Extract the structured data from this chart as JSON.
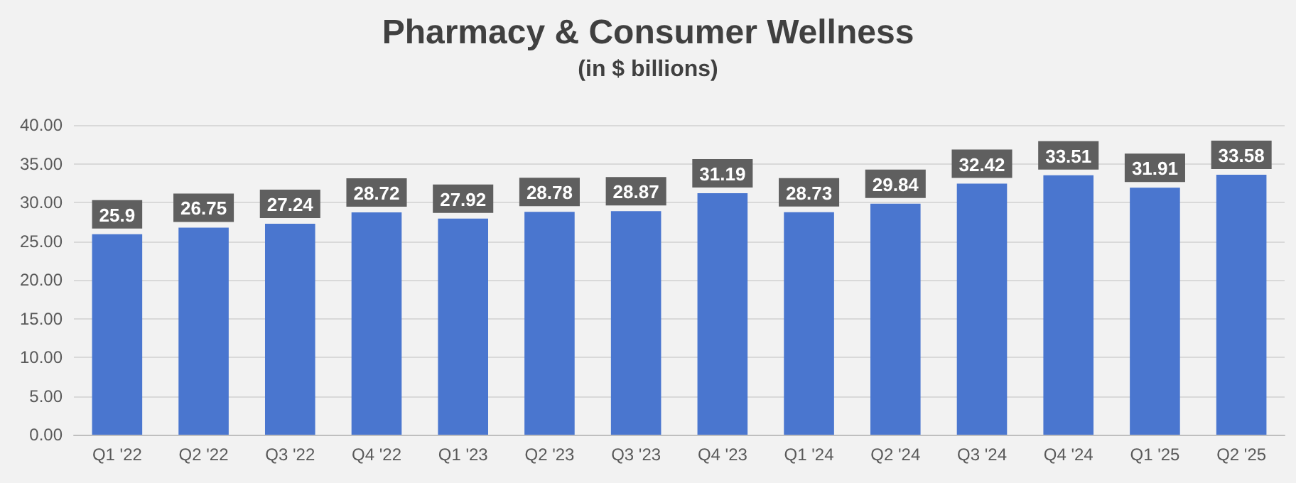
{
  "chart_data": {
    "type": "bar",
    "title": "Pharmacy & Consumer Wellness",
    "subtitle": "(in $ billions)",
    "categories": [
      "Q1 '22",
      "Q2 '22",
      "Q3 '22",
      "Q4 '22",
      "Q1 '23",
      "Q2 '23",
      "Q3 '23",
      "Q4 '23",
      "Q1 '24",
      "Q2 '24",
      "Q3 '24",
      "Q4 '24",
      "Q1 '25",
      "Q2 '25"
    ],
    "values": [
      25.9,
      26.75,
      27.24,
      28.72,
      27.92,
      28.78,
      28.87,
      31.19,
      28.73,
      29.84,
      32.42,
      33.51,
      31.91,
      33.58
    ],
    "color": "#4a76cf",
    "ylim": [
      0,
      40
    ],
    "yticks": [
      {
        "value": 0,
        "label": "0.00"
      },
      {
        "value": 5,
        "label": "5.00"
      },
      {
        "value": 10,
        "label": "10.00"
      },
      {
        "value": 15,
        "label": "15.00"
      },
      {
        "value": 20,
        "label": "20.00"
      },
      {
        "value": 25,
        "label": "25.00"
      },
      {
        "value": 30,
        "label": "30.00"
      },
      {
        "value": 35,
        "label": "35.00"
      },
      {
        "value": 40,
        "label": "40.00"
      }
    ],
    "grid": "y",
    "data_labels": true
  }
}
